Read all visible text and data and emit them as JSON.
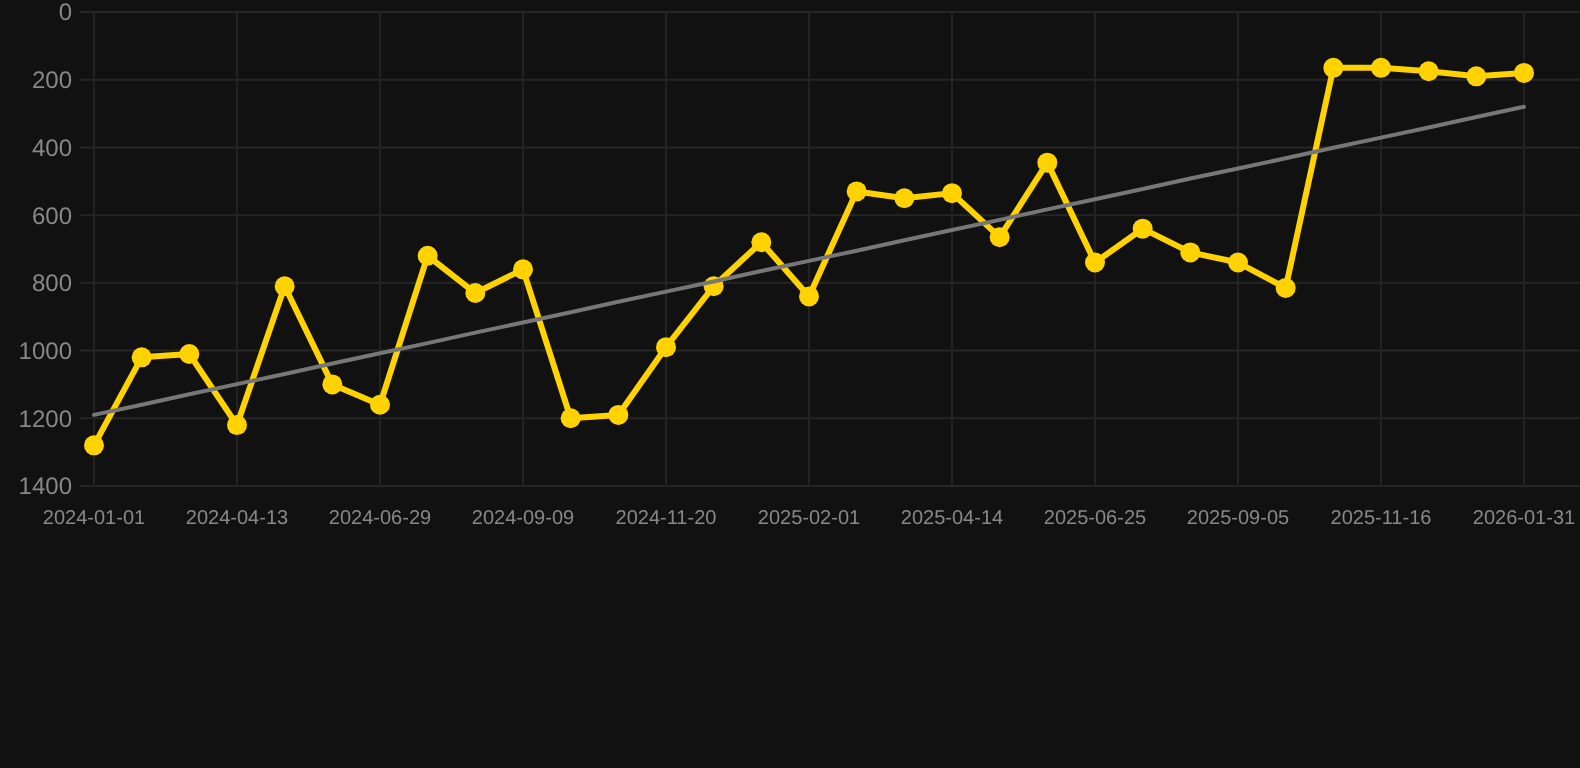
{
  "chart_data": {
    "type": "line",
    "categories": [
      "2024-01-01",
      null,
      null,
      "2024-04-13",
      null,
      null,
      "2024-06-29",
      null,
      null,
      "2024-09-09",
      null,
      null,
      "2024-11-20",
      null,
      null,
      "2025-02-01",
      null,
      null,
      "2025-04-14",
      null,
      null,
      "2025-06-25",
      null,
      null,
      "2025-09-05",
      null,
      null,
      "2025-11-16",
      null,
      null,
      "2026-01-31"
    ],
    "series": [
      {
        "color": "#ffd200",
        "marker": "circle",
        "values": [
          1280,
          1020,
          1010,
          1220,
          810,
          1100,
          1160,
          720,
          830,
          760,
          1200,
          1190,
          990,
          810,
          680,
          840,
          530,
          550,
          535,
          665,
          445,
          740,
          640,
          710,
          740,
          815,
          165,
          165,
          175,
          190,
          180
        ]
      },
      {
        "type": "line",
        "color": "#777777",
        "marker": "none",
        "values": [
          1190,
          1160,
          1129,
          1099,
          1069,
          1038,
          1008,
          978,
          947,
          917,
          887,
          856,
          826,
          796,
          765,
          735,
          705,
          674,
          644,
          614,
          583,
          553,
          523,
          492,
          462,
          432,
          401,
          371,
          341,
          310,
          280
        ]
      }
    ],
    "ylim": [
      1400,
      0
    ],
    "yticks": [
      0,
      200,
      400,
      600,
      800,
      1000,
      1200,
      1400
    ],
    "grid": true
  }
}
